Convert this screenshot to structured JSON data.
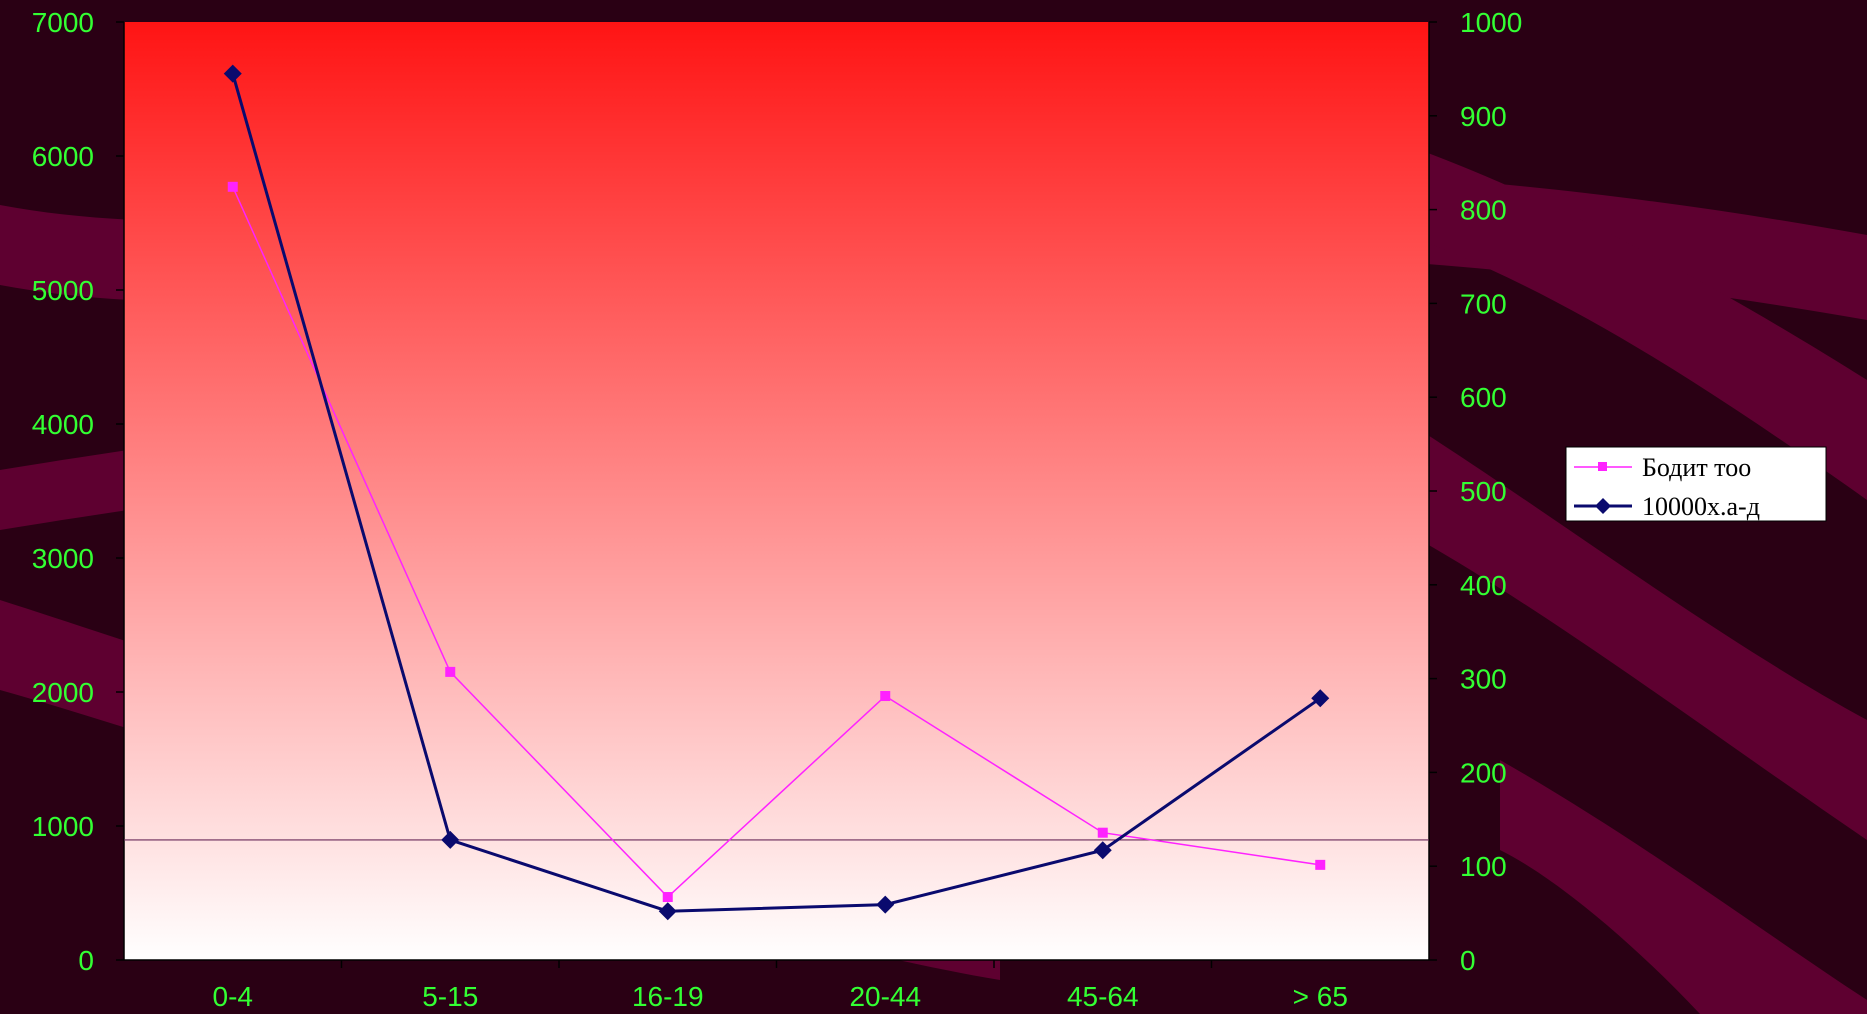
{
  "colors": {
    "background": "#2a0014",
    "wave": "#5e0030",
    "plot_top": "#ff1414",
    "plot_bottom": "#ffffff",
    "tick_text": "#33ff33",
    "series_1": "#ff22ff",
    "series_2": "#0a0a6e",
    "reference_line": "#6a2a5a"
  },
  "chart_data": {
    "type": "line",
    "title": "",
    "xlabel": "",
    "ylabel": "",
    "categories": [
      "0-4",
      "5-15",
      "16-19",
      "20-44",
      "45-64",
      "> 65"
    ],
    "y_left": {
      "lim": [
        0,
        7000
      ],
      "ticks": [
        "0",
        "1000",
        "2000",
        "3000",
        "4000",
        "5000",
        "6000",
        "7000"
      ]
    },
    "y_right": {
      "lim": [
        0,
        1000
      ],
      "ticks": [
        "0",
        "100",
        "200",
        "300",
        "400",
        "500",
        "600",
        "700",
        "800",
        "900",
        "1000"
      ]
    },
    "reference_line": {
      "axis": "right",
      "value": 128
    },
    "grid": false,
    "legend_position": "right",
    "series": [
      {
        "name": "Бодит тоо",
        "axis": "left",
        "marker": "square",
        "values": [
          5770,
          2150,
          470,
          1970,
          950,
          710
        ]
      },
      {
        "name": "10000х.а-д",
        "axis": "right",
        "marker": "diamond",
        "values": [
          945,
          128,
          52,
          59,
          117,
          279
        ]
      }
    ]
  }
}
